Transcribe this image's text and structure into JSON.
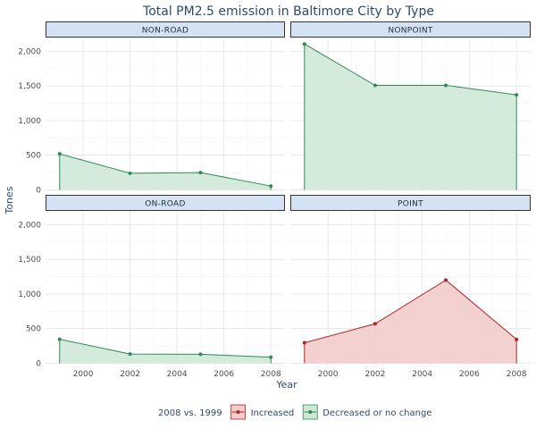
{
  "chart_data": {
    "type": "area",
    "title": "Total PM2.5 emission in Baltimore City by Type",
    "xlabel": "Year",
    "ylabel": "Tones",
    "x_ticks": [
      2000,
      2002,
      2004,
      2006,
      2008
    ],
    "y_ticks": [
      0,
      500,
      1000,
      1500,
      2000
    ],
    "y_tick_labels": [
      "0",
      "500",
      "1,000",
      "1,500",
      "2,000"
    ],
    "xlim": [
      1998.4,
      2008.6
    ],
    "ylim": [
      -20,
      2200
    ],
    "grid": true,
    "legend": {
      "title": "2008 vs. 1999",
      "position": "bottom",
      "entries": [
        {
          "label": "Increased",
          "key": "increased",
          "line_color": "#b22222",
          "fill_color": "#f3cccc"
        },
        {
          "label": "Decreased or no change",
          "key": "decreased",
          "line_color": "#2e8b57",
          "fill_color": "#cfe8d6"
        }
      ]
    },
    "panels": [
      {
        "name": "NON-ROAD",
        "category": "decreased",
        "x": [
          1999,
          2002,
          2005,
          2008
        ],
        "y": [
          520,
          240,
          250,
          55
        ]
      },
      {
        "name": "NONPOINT",
        "category": "decreased",
        "x": [
          1999,
          2002,
          2005,
          2008
        ],
        "y": [
          2107,
          1509,
          1510,
          1373
        ]
      },
      {
        "name": "ON-ROAD",
        "category": "decreased",
        "x": [
          1999,
          2002,
          2005,
          2008
        ],
        "y": [
          347,
          134,
          130,
          88
        ]
      },
      {
        "name": "POINT",
        "category": "increased",
        "x": [
          1999,
          2002,
          2005,
          2008
        ],
        "y": [
          296,
          570,
          1202,
          344
        ]
      }
    ]
  }
}
